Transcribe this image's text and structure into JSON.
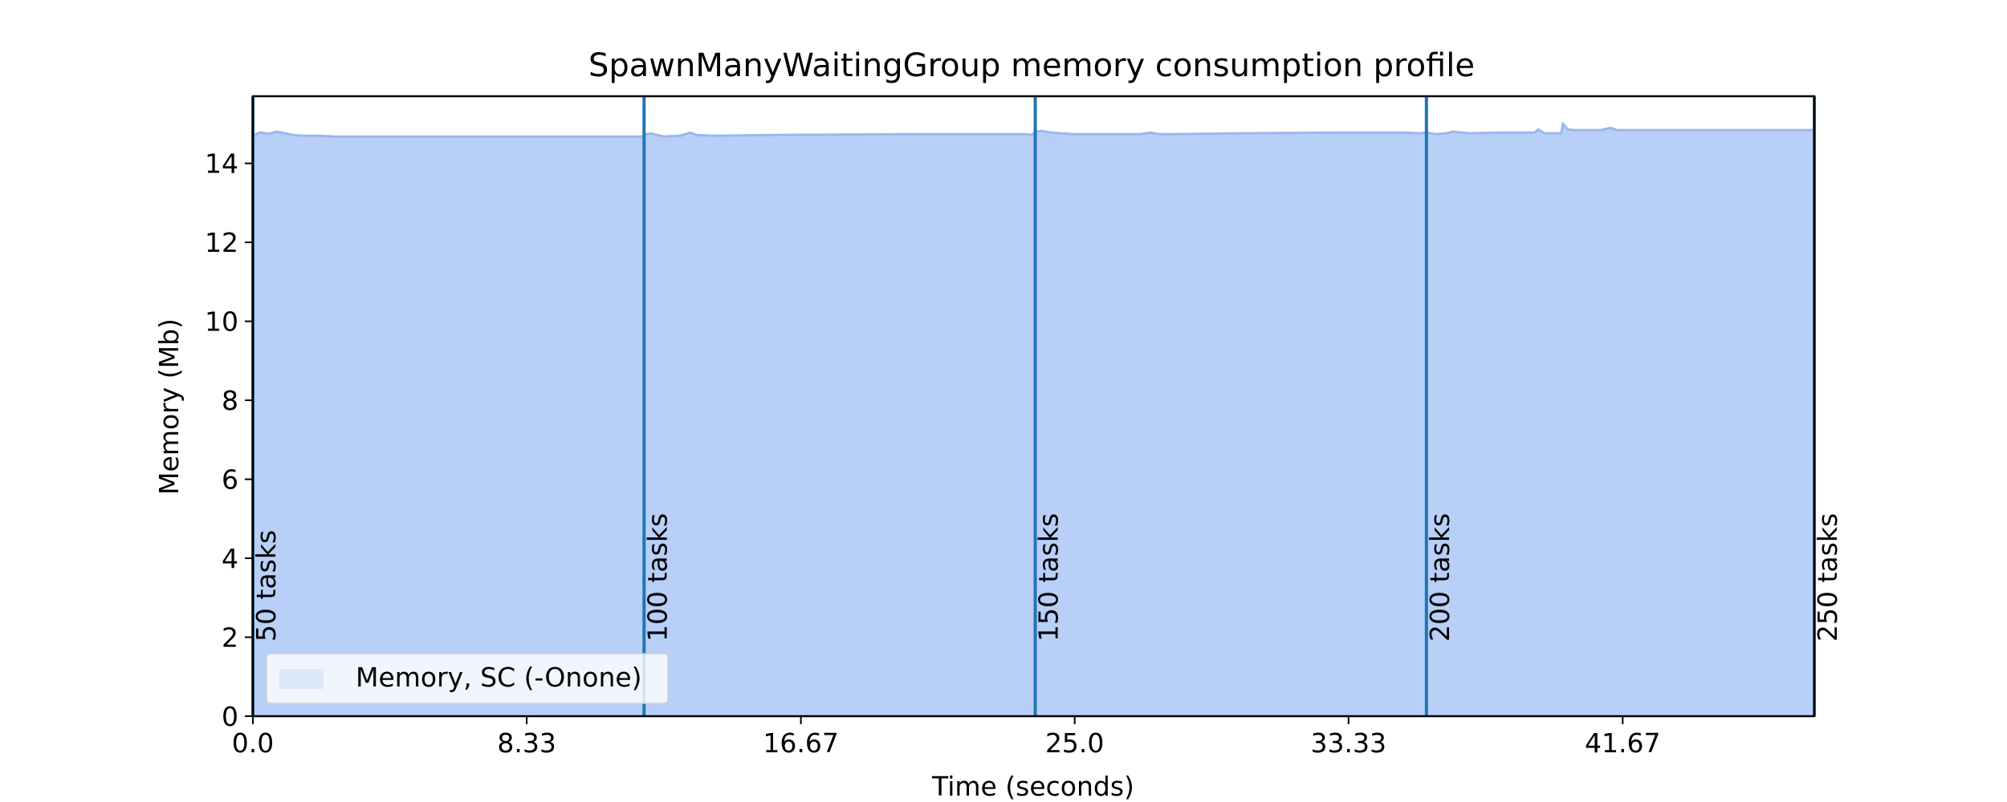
{
  "chart_data": {
    "type": "area",
    "title": "SpawnManyWaitingGroup memory consumption profile",
    "xlabel": "Time (seconds)",
    "ylabel": "Memory (Mb)",
    "xlim": [
      0,
      47.5
    ],
    "ylim": [
      0,
      15.7
    ],
    "x_ticks": [
      0.0,
      8.33,
      16.67,
      25.0,
      33.33,
      41.67
    ],
    "x_tick_labels": [
      "0.0",
      "8.33",
      "16.67",
      "25.0",
      "33.33",
      "41.67"
    ],
    "y_ticks": [
      0,
      2,
      4,
      6,
      8,
      10,
      12,
      14
    ],
    "y_tick_labels": [
      "0",
      "2",
      "4",
      "6",
      "8",
      "10",
      "12",
      "14"
    ],
    "grid": false,
    "legend_position": "lower-left",
    "fill_color": "#b8cff7",
    "line_color": "#9ab8ec",
    "marker_color": "#1f77b4",
    "series": [
      {
        "name": "Memory, SC (-Onone)",
        "x": [
          0,
          0.2,
          0.5,
          0.7,
          0.9,
          1.2,
          1.5,
          2.0,
          2.5,
          3.0,
          5.0,
          8.0,
          11.0,
          11.85,
          11.9,
          12.1,
          12.3,
          12.5,
          13.0,
          13.3,
          13.5,
          14.0,
          16.0,
          20.0,
          23.5,
          23.7,
          23.8,
          24.0,
          24.3,
          24.6,
          25.0,
          26.0,
          27.0,
          27.3,
          27.6,
          28.0,
          30.0,
          33.0,
          35.0,
          35.5,
          35.7,
          36.0,
          36.3,
          36.5,
          37.0,
          38.0,
          39.0,
          39.1,
          39.3,
          39.8,
          39.85,
          40.0,
          40.2,
          40.5,
          41.0,
          41.3,
          41.5,
          42.0,
          44.0,
          47.5
        ],
        "values": [
          14.7,
          14.78,
          14.75,
          14.8,
          14.78,
          14.72,
          14.7,
          14.7,
          14.68,
          14.68,
          14.68,
          14.68,
          14.68,
          14.68,
          14.72,
          14.76,
          14.72,
          14.68,
          14.7,
          14.78,
          14.72,
          14.7,
          14.72,
          14.74,
          14.74,
          14.72,
          14.8,
          14.82,
          14.78,
          14.76,
          14.74,
          14.74,
          14.74,
          14.78,
          14.74,
          14.74,
          14.76,
          14.78,
          14.78,
          14.76,
          14.78,
          14.74,
          14.76,
          14.8,
          14.76,
          14.78,
          14.78,
          14.86,
          14.76,
          14.76,
          15.0,
          14.86,
          14.84,
          14.84,
          14.84,
          14.9,
          14.84,
          14.84,
          14.84,
          14.84
        ]
      }
    ],
    "markers": [
      {
        "x": 0.0,
        "label": "50 tasks"
      },
      {
        "x": 11.9,
        "label": "100 tasks"
      },
      {
        "x": 23.8,
        "label": "150 tasks"
      },
      {
        "x": 35.7,
        "label": "200 tasks"
      },
      {
        "x": 47.5,
        "label": "250 tasks"
      }
    ]
  }
}
